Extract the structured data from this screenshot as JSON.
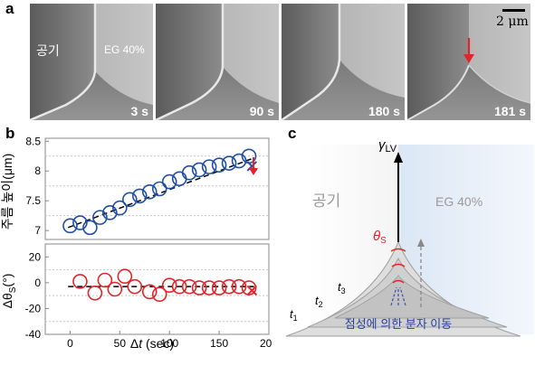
{
  "panel_labels": {
    "a": "a",
    "b": "b",
    "c": "c"
  },
  "panel_a": {
    "air_label": "공기",
    "eg_label": "EG 40%",
    "times": [
      "3 s",
      "90 s",
      "180 s",
      "181 s"
    ],
    "scale_bar": "2 μm",
    "arrow_color": "#e0262a"
  },
  "panel_b": {
    "top_ylabel": "주름 높이(μm)",
    "bottom_ylabel": "Δθ",
    "bottom_ylabel_sub": "S",
    "bottom_ylabel_unit": "(°)",
    "xlabel_prefix": "Δ",
    "xlabel_var": "t",
    "xlabel_unit": " (sec)",
    "colors": {
      "top": "#1f4ea3",
      "bottom": "#e0262a"
    }
  },
  "chart_data": [
    {
      "type": "scatter",
      "title": "",
      "xlabel": "",
      "ylabel": "주름 높이(μm)",
      "xlim": [
        -25,
        200
      ],
      "ylim": [
        6.85,
        8.55
      ],
      "yticks": [
        7.0,
        7.5,
        8.0,
        8.5
      ],
      "grid_lines": [
        7.25,
        7.75,
        8.25
      ],
      "x": [
        0,
        10,
        20,
        30,
        40,
        50,
        60,
        70,
        80,
        90,
        100,
        110,
        120,
        130,
        140,
        150,
        160,
        170,
        180
      ],
      "y": [
        7.08,
        7.13,
        7.05,
        7.22,
        7.3,
        7.38,
        7.52,
        7.58,
        7.65,
        7.7,
        7.82,
        7.87,
        7.97,
        8.02,
        8.07,
        8.1,
        8.13,
        8.17,
        8.25
      ],
      "fit_line": [
        [
          -2,
          7.05
        ],
        [
          185,
          8.22
        ]
      ],
      "final_marker": [
        183,
        8.08
      ]
    },
    {
      "type": "scatter",
      "title": "",
      "xlabel": "Δt (sec)",
      "ylabel": "ΔθS (°)",
      "xlim": [
        -25,
        200
      ],
      "ylim": [
        -40,
        30
      ],
      "yticks": [
        20,
        0,
        -20,
        -40
      ],
      "xticks": [
        0,
        50,
        100,
        150,
        200
      ],
      "grid_lines": [
        10,
        -10,
        -30
      ],
      "x": [
        10,
        25,
        35,
        45,
        55,
        65,
        80,
        90,
        100,
        110,
        120,
        130,
        140,
        150,
        160,
        170,
        180
      ],
      "y": [
        1,
        -8,
        2,
        -5,
        5,
        -3,
        -7,
        -9,
        -2,
        -3,
        -3,
        -4,
        -4,
        -4,
        -3,
        -3,
        -4
      ],
      "fit_line": [
        [
          -2,
          -3
        ],
        [
          185,
          -3
        ]
      ],
      "final_marker": [
        183,
        -6
      ]
    }
  ],
  "panel_c": {
    "gamma": "γ",
    "gamma_sub": "LV",
    "air_label": "공기",
    "eg_label": "EG 40%",
    "theta": "θ",
    "theta_sub": "S",
    "t1": "t",
    "t1_sub": "1",
    "t2": "t",
    "t2_sub": "2",
    "t3": "t",
    "t3_sub": "3",
    "caption": "점성에 의한 분자 이동"
  }
}
